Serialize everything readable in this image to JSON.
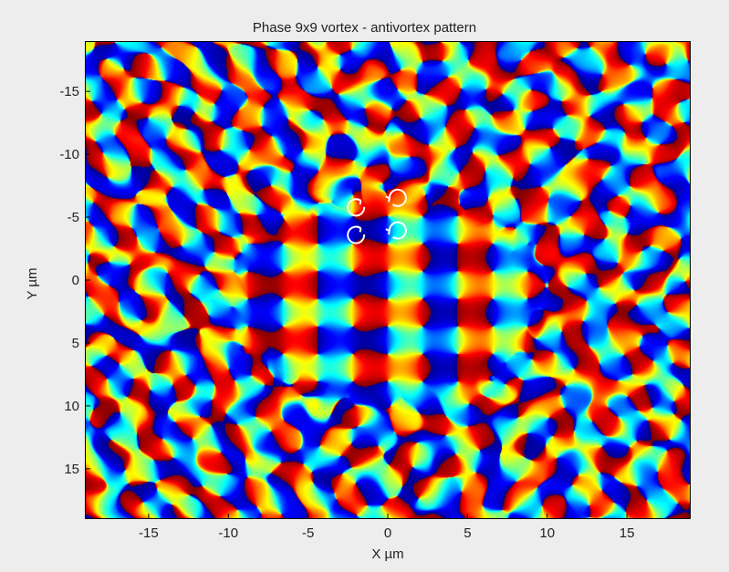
{
  "chart_data": {
    "type": "heatmap",
    "title": "Phase 9x9 vortex - antivortex pattern",
    "xlabel": "X µm",
    "ylabel": "Y µm",
    "xlim": [
      -19,
      19
    ],
    "ylim": [
      -19,
      19
    ],
    "y_direction": "reversed",
    "x_ticks": [
      -15,
      -10,
      -5,
      0,
      5,
      10,
      15
    ],
    "x_tick_labels": [
      "-15",
      "-10",
      "-5",
      "0",
      "5",
      "10",
      "15"
    ],
    "y_ticks": [
      -15,
      -10,
      -5,
      0,
      5,
      10,
      15
    ],
    "y_tick_labels": [
      "-15",
      "-10",
      "-5",
      "0",
      "5",
      "10",
      "15"
    ],
    "colormap": "jet",
    "colormap_colors": [
      "#00008f",
      "#0000ff",
      "#00ffff",
      "#ffff00",
      "#ff0000",
      "#800000"
    ],
    "pattern": {
      "lattice_size": [
        9,
        9
      ],
      "pattern_region_x": [
        -10,
        10
      ],
      "pattern_region_y": [
        -7,
        10
      ],
      "background": "random speckle phase noise",
      "lattice_period_um": 2.2
    },
    "vortex_markers": [
      {
        "x": -2,
        "y": -5.8,
        "type": "antivortex"
      },
      {
        "x": -0.2,
        "y": -6.0,
        "type": "vortex"
      },
      {
        "x": -2,
        "y": -3.6,
        "type": "antivortex"
      },
      {
        "x": -0.2,
        "y": -3.4,
        "type": "vortex"
      }
    ],
    "grid": false,
    "legend": "none"
  }
}
